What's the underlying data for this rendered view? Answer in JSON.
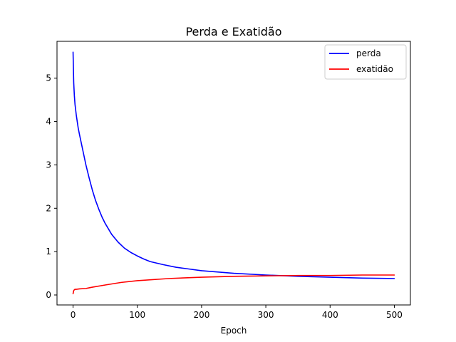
{
  "chart_data": {
    "type": "line",
    "title": "Perda e Exatidão",
    "xlabel": "Epoch",
    "ylabel": "",
    "xlim": [
      -25,
      525
    ],
    "ylim": [
      -0.23,
      5.85
    ],
    "xticks": [
      0,
      100,
      200,
      300,
      400,
      500
    ],
    "yticks": [
      0,
      1,
      2,
      3,
      4,
      5
    ],
    "legend_position": "top-right",
    "grid": false,
    "series": [
      {
        "name": "perda",
        "color": "#0000ff",
        "x": [
          0,
          1,
          2,
          3,
          5,
          8,
          10,
          15,
          20,
          25,
          30,
          35,
          40,
          45,
          50,
          60,
          70,
          80,
          90,
          100,
          110,
          120,
          140,
          160,
          180,
          200,
          250,
          300,
          350,
          400,
          450,
          500
        ],
        "y": [
          5.6,
          4.9,
          4.6,
          4.4,
          4.15,
          3.85,
          3.7,
          3.35,
          3.0,
          2.7,
          2.42,
          2.18,
          1.98,
          1.8,
          1.65,
          1.4,
          1.22,
          1.08,
          0.98,
          0.9,
          0.83,
          0.77,
          0.7,
          0.64,
          0.6,
          0.56,
          0.5,
          0.46,
          0.43,
          0.41,
          0.39,
          0.38
        ]
      },
      {
        "name": "exatidão",
        "color": "#ff0000",
        "x": [
          0,
          1,
          2,
          3,
          5,
          10,
          20,
          30,
          50,
          75,
          100,
          150,
          200,
          250,
          300,
          350,
          400,
          450,
          500
        ],
        "y": [
          0.03,
          0.1,
          0.12,
          0.13,
          0.13,
          0.14,
          0.15,
          0.18,
          0.23,
          0.29,
          0.33,
          0.38,
          0.41,
          0.43,
          0.44,
          0.45,
          0.45,
          0.46,
          0.46
        ]
      }
    ]
  }
}
